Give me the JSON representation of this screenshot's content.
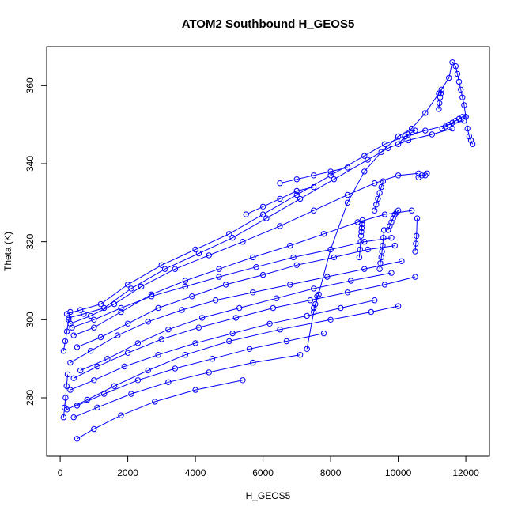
{
  "chart_data": {
    "type": "scatter",
    "title": "ATOM2 Southbound H_GEOS5",
    "xlabel": "H_GEOS5",
    "ylabel": "Theta (K)",
    "xlim": [
      -400,
      12700
    ],
    "ylim": [
      265,
      370
    ],
    "xticks": [
      0,
      2000,
      4000,
      6000,
      8000,
      10000,
      12000
    ],
    "yticks": [
      280,
      300,
      320,
      340,
      360
    ],
    "grid": false,
    "legend": "none",
    "color": "#0000ff",
    "marker": "open-circle",
    "connected": true,
    "series": [
      {
        "x": [
          200,
          600,
          1200,
          2000,
          3000,
          4000,
          5000,
          6000,
          7000,
          8000,
          9000,
          9600,
          10200,
          10800,
          11500,
          11950
        ],
        "y": [
          301.5,
          302.5,
          304,
          309,
          314,
          318,
          322,
          327,
          332,
          337,
          342,
          345,
          347,
          348.5,
          350,
          351
        ]
      },
      {
        "x": [
          250,
          700,
          1300,
          2100,
          3100,
          4100,
          5100,
          6100,
          7100,
          8100,
          9100,
          9700,
          10300,
          11000,
          11600
        ],
        "y": [
          300.5,
          301.5,
          303,
          308,
          313,
          317,
          321,
          326,
          331,
          336,
          341,
          344,
          346,
          347.5,
          349
        ]
      },
      {
        "x": [
          300,
          900,
          1600,
          2400,
          3400,
          4400,
          5400,
          6500,
          7500,
          8500,
          9300,
          10000,
          10600
        ],
        "y": [
          299,
          301,
          304,
          308.5,
          313,
          316.5,
          320,
          324,
          328,
          332,
          335,
          337,
          337.5
        ]
      },
      {
        "x": [
          400,
          1000,
          1800,
          2700,
          3700,
          4700,
          5700,
          6800,
          7800,
          8800,
          9600,
          10400
        ],
        "y": [
          296,
          298,
          302,
          306.5,
          310,
          313,
          316,
          319,
          322,
          325,
          327,
          328
        ]
      },
      {
        "x": [
          500,
          1200,
          2000,
          2900,
          3900,
          4900,
          6000,
          7000,
          8100,
          9100,
          9900
        ],
        "y": [
          293,
          295.5,
          299,
          303,
          306,
          309,
          311.5,
          314,
          316,
          318,
          319
        ]
      },
      {
        "x": [
          300,
          900,
          1700,
          2600,
          3600,
          4600,
          5700,
          6800,
          7900,
          9000,
          10100
        ],
        "y": [
          289,
          292,
          296,
          299.5,
          302.5,
          305,
          307,
          309,
          311,
          313,
          315
        ]
      },
      {
        "x": [
          400,
          1100,
          2000,
          3000,
          4100,
          5200,
          6300,
          7400,
          8500,
          9600,
          10500
        ],
        "y": [
          285,
          288,
          291.5,
          295,
          298,
          300.5,
          303,
          305,
          307,
          309,
          311
        ]
      },
      {
        "x": [
          300,
          1000,
          1900,
          2900,
          4000,
          5100,
          6200,
          7300,
          8300,
          9300
        ],
        "y": [
          282,
          284.5,
          288,
          291,
          294,
          296.5,
          299,
          301,
          303,
          305
        ]
      },
      {
        "x": [
          500,
          1300,
          2300,
          3400,
          4500,
          5600,
          6700,
          7800
        ],
        "y": [
          278,
          281,
          284.5,
          287.5,
          290,
          292.5,
          294.5,
          296.5
        ]
      },
      {
        "x": [
          400,
          1100,
          2100,
          3200,
          4400,
          5700,
          7100
        ],
        "y": [
          275,
          277.5,
          281,
          284,
          286.5,
          289,
          291
        ]
      },
      {
        "x": [
          500,
          1000,
          1800,
          2800,
          4000,
          5400
        ],
        "y": [
          269.5,
          272,
          275.5,
          279,
          282,
          284.5
        ]
      },
      {
        "x": [
          200,
          800,
          1600,
          2600,
          3700,
          5000,
          6500,
          8000,
          9200,
          10000
        ],
        "y": [
          277,
          279.5,
          283,
          287,
          291,
          294.5,
          297.5,
          300,
          302,
          303.5
        ]
      },
      {
        "x": [
          600,
          1400,
          2300,
          3200,
          4200,
          5300,
          6400,
          7500,
          8600,
          9800
        ],
        "y": [
          287,
          290,
          294,
          297.5,
          300.5,
          303,
          305.5,
          308,
          310,
          312
        ]
      },
      {
        "x": [
          350,
          1000,
          1800,
          2700,
          3700,
          4700,
          5800,
          6900,
          8000,
          9000,
          9800
        ],
        "y": [
          298,
          300,
          303,
          306,
          308.5,
          311,
          313.5,
          316,
          318,
          320,
          321
        ]
      },
      {
        "x": [
          8850,
          8870,
          8890,
          8900,
          8910,
          8920,
          8930,
          8940
        ],
        "y": [
          316,
          318,
          320,
          321.5,
          322.5,
          323.5,
          324.5,
          325.5
        ]
      },
      {
        "x": [
          9450,
          9470,
          9500,
          9520,
          9540,
          9560,
          9580
        ],
        "y": [
          313,
          314.5,
          316,
          317.5,
          319,
          321,
          323
        ]
      },
      {
        "x": [
          9700,
          9750,
          9800,
          9850,
          9900,
          9950,
          10000
        ],
        "y": [
          323,
          324,
          325,
          326,
          327,
          327.5,
          328
        ]
      },
      {
        "x": [
          9300,
          9350,
          9400,
          9450,
          9500,
          9550
        ],
        "y": [
          328,
          329.5,
          331,
          332.5,
          334,
          335.5
        ]
      },
      {
        "x": [
          10000,
          10100,
          10200,
          10300,
          10400,
          10500
        ],
        "y": [
          345,
          346,
          347,
          347.5,
          348,
          348.5
        ]
      },
      {
        "x": [
          10600,
          10700,
          10800,
          10850
        ],
        "y": [
          336.5,
          337,
          337,
          337.5
        ]
      },
      {
        "x": [
          10500,
          10520,
          10540,
          10560
        ],
        "y": [
          317.5,
          319.5,
          321.5,
          326
        ]
      },
      {
        "x": [
          7300,
          7500,
          8000,
          8500,
          9000,
          9500,
          10000,
          10400,
          10800,
          11200,
          11500,
          11600,
          11700,
          11750,
          11800,
          11850,
          11900,
          11950,
          12000,
          12050,
          12100,
          12150,
          12200
        ],
        "y": [
          292.5,
          302,
          318,
          330,
          338,
          343,
          347,
          349,
          353,
          358,
          362,
          366,
          365,
          363,
          361,
          359,
          357,
          355,
          352,
          349,
          347,
          346,
          345
        ]
      },
      {
        "x": [
          11200,
          11220,
          11240,
          11260,
          11280
        ],
        "y": [
          354,
          355.5,
          357,
          358,
          359
        ]
      },
      {
        "x": [
          11300,
          11400,
          11500,
          11600,
          11700,
          11800,
          11900,
          12000
        ],
        "y": [
          349,
          349.5,
          350,
          350.5,
          351,
          351.5,
          352,
          352
        ]
      },
      {
        "x": [
          100,
          150,
          200,
          250,
          300
        ],
        "y": [
          292,
          294.5,
          297,
          300,
          302
        ]
      },
      {
        "x": [
          100,
          130,
          160,
          190,
          220
        ],
        "y": [
          275,
          277.5,
          280,
          283,
          286
        ]
      },
      {
        "x": [
          7500,
          7550,
          7600,
          7650
        ],
        "y": [
          303,
          304,
          306,
          306.5
        ]
      },
      {
        "x": [
          6500,
          7000,
          7500,
          8000,
          8500
        ],
        "y": [
          335,
          336,
          337,
          338,
          339
        ]
      },
      {
        "x": [
          5500,
          6000,
          6500,
          7000,
          7500
        ],
        "y": [
          327,
          329,
          331,
          333,
          334
        ]
      }
    ]
  }
}
